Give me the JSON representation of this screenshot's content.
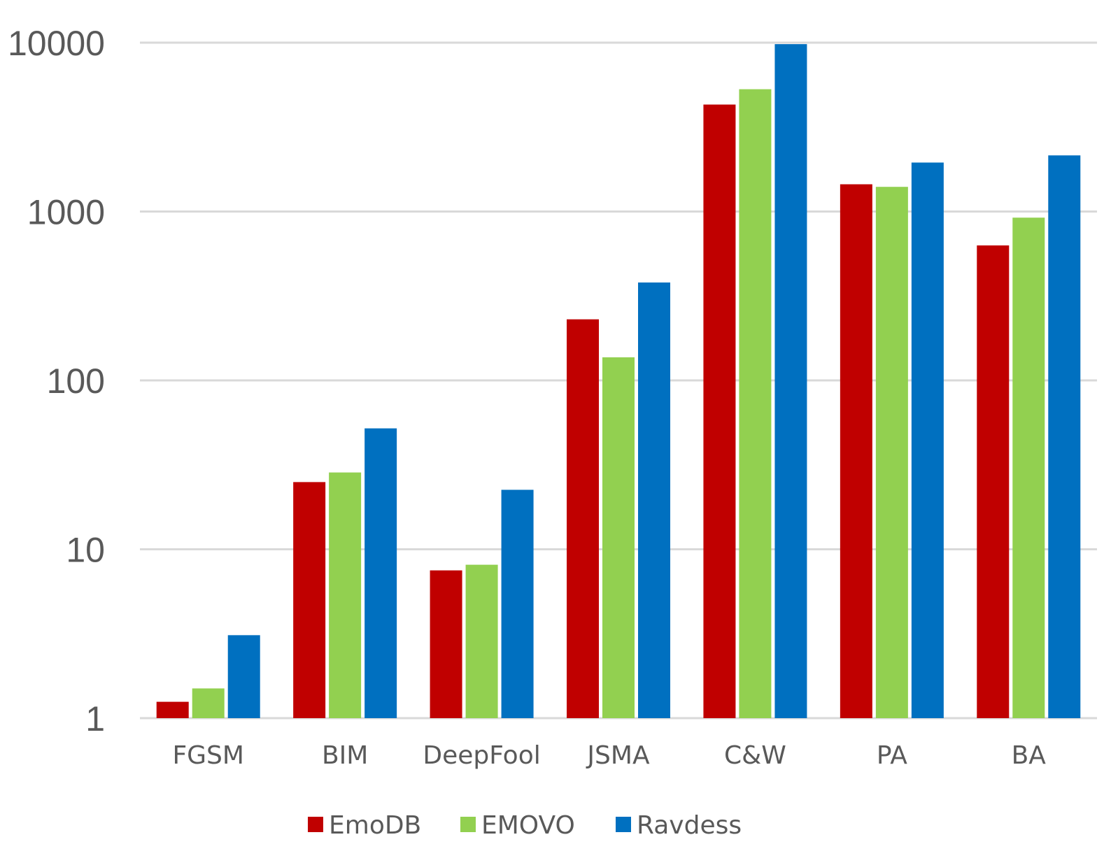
{
  "chart_data": {
    "type": "bar",
    "title": "",
    "xlabel": "",
    "ylabel": "",
    "yscale": "log",
    "ylim": [
      1,
      10000
    ],
    "yticks": [
      {
        "value": 1,
        "label": "1"
      },
      {
        "value": 10,
        "label": "10"
      },
      {
        "value": 100,
        "label": "100"
      },
      {
        "value": 1000,
        "label": "1000"
      },
      {
        "value": 10000,
        "label": "10000"
      }
    ],
    "grid": true,
    "legend_position": "bottom",
    "categories": [
      "FGSM",
      "BIM",
      "DeepFool",
      "JSMA",
      "C&W",
      "PA",
      "BA"
    ],
    "series": [
      {
        "name": "EmoDB",
        "color": "#c00000",
        "values": [
          1.25,
          25,
          7.5,
          230,
          4300,
          1450,
          630
        ]
      },
      {
        "name": "EMOVO",
        "color": "#92d050",
        "values": [
          1.5,
          28.5,
          8.1,
          137,
          5300,
          1400,
          920
        ]
      },
      {
        "name": "Ravdess",
        "color": "#0070c0",
        "values": [
          3.1,
          52,
          22.5,
          380,
          9800,
          1950,
          2150
        ]
      }
    ]
  }
}
